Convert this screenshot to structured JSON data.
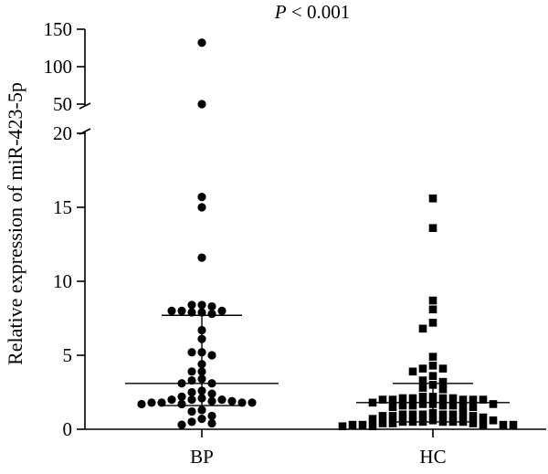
{
  "chart_data": {
    "type": "scatter",
    "title": "P < 0.001",
    "title_italic_prefix": "P",
    "title_rest": " < 0.001",
    "ylabel": "Relative expression of miR-423-5p",
    "xlabel": "",
    "categories": [
      "BP",
      "HC"
    ],
    "y_axis": {
      "segments": [
        {
          "range": [
            0,
            20
          ],
          "ticks": [
            0,
            5,
            10,
            15,
            20
          ]
        },
        {
          "range": [
            50,
            150
          ],
          "ticks": [
            50,
            100,
            150
          ]
        }
      ],
      "broken": true
    },
    "grid": false,
    "series": [
      {
        "group": "BP",
        "marker": "circle",
        "median": 3.1,
        "iqr": [
          1.6,
          7.7
        ],
        "points": [
          [
            0,
            132
          ],
          [
            0,
            50
          ],
          [
            0,
            15.7
          ],
          [
            0,
            15.0
          ],
          [
            0,
            11.6
          ],
          [
            0,
            8.4
          ],
          [
            0,
            8.3
          ],
          [
            0,
            8.0
          ],
          [
            0,
            8.0
          ],
          [
            0,
            8.0
          ],
          [
            0,
            7.9
          ],
          [
            0,
            7.8
          ],
          [
            0,
            8.4
          ],
          [
            0,
            7.9
          ],
          [
            0,
            6.7
          ],
          [
            0,
            6.1
          ],
          [
            0,
            5.2
          ],
          [
            0,
            5.0
          ],
          [
            0,
            5.2
          ],
          [
            0,
            4.4
          ],
          [
            0,
            3.9
          ],
          [
            0,
            3.9
          ],
          [
            0,
            3.4
          ],
          [
            0,
            3.3
          ],
          [
            0,
            3.1
          ],
          [
            0,
            3.1
          ],
          [
            0,
            2.6
          ],
          [
            0,
            2.4
          ],
          [
            0,
            2.5
          ],
          [
            0,
            2.2
          ],
          [
            0,
            2.1
          ],
          [
            0,
            2.0
          ],
          [
            0,
            2.0
          ],
          [
            0,
            1.9
          ],
          [
            0,
            1.9
          ],
          [
            0,
            1.8
          ],
          [
            0,
            1.8
          ],
          [
            0,
            1.7
          ],
          [
            0,
            1.7
          ],
          [
            0,
            1.8
          ],
          [
            0,
            1.8
          ],
          [
            0,
            2.0
          ],
          [
            0,
            1.3
          ],
          [
            0,
            1.2
          ],
          [
            0,
            0.9
          ],
          [
            0,
            0.7
          ],
          [
            0,
            0.5
          ],
          [
            0,
            0.4
          ],
          [
            0,
            0.3
          ]
        ]
      },
      {
        "group": "HC",
        "marker": "square",
        "median": 1.8,
        "iqr": [
          0.5,
          3.1
        ],
        "points": [
          [
            1,
            15.6
          ],
          [
            1,
            13.6
          ],
          [
            1,
            8.7
          ],
          [
            1,
            8.1
          ],
          [
            1,
            7.2
          ],
          [
            1,
            6.8
          ],
          [
            1,
            4.9
          ],
          [
            1,
            4.3
          ],
          [
            1,
            4.1
          ],
          [
            1,
            4.1
          ],
          [
            1,
            3.9
          ],
          [
            1,
            3.6
          ],
          [
            1,
            3.3
          ],
          [
            1,
            3.2
          ],
          [
            1,
            3.0
          ],
          [
            1,
            2.8
          ],
          [
            1,
            2.7
          ],
          [
            1,
            2.2
          ],
          [
            1,
            2.2
          ],
          [
            1,
            2.1
          ],
          [
            1,
            2.1
          ],
          [
            1,
            2.0
          ],
          [
            1,
            2.0
          ],
          [
            1,
            2.0
          ],
          [
            1,
            2.0
          ],
          [
            1,
            2.0
          ],
          [
            1,
            2.1
          ],
          [
            1,
            2.1
          ],
          [
            1,
            1.8
          ],
          [
            1,
            1.7
          ],
          [
            1,
            1.6
          ],
          [
            1,
            1.6
          ],
          [
            1,
            1.5
          ],
          [
            1,
            1.5
          ],
          [
            1,
            1.5
          ],
          [
            1,
            1.6
          ],
          [
            1,
            1.6
          ],
          [
            1,
            1.7
          ],
          [
            1,
            1.7
          ],
          [
            1,
            1.1
          ],
          [
            1,
            1.0
          ],
          [
            1,
            1.0
          ],
          [
            1,
            1.0
          ],
          [
            1,
            1.0
          ],
          [
            1,
            1.0
          ],
          [
            1,
            0.9
          ],
          [
            1,
            0.9
          ],
          [
            1,
            0.9
          ],
          [
            1,
            1.0
          ],
          [
            1,
            0.8
          ],
          [
            1,
            0.7
          ],
          [
            1,
            0.6
          ],
          [
            1,
            0.6
          ],
          [
            1,
            0.5
          ],
          [
            1,
            0.5
          ],
          [
            1,
            0.5
          ],
          [
            1,
            0.5
          ],
          [
            1,
            0.5
          ],
          [
            1,
            0.5
          ],
          [
            1,
            0.4
          ],
          [
            1,
            0.4
          ],
          [
            1,
            0.4
          ],
          [
            1,
            0.3
          ],
          [
            1,
            0.3
          ],
          [
            1,
            0.3
          ],
          [
            1,
            0.3
          ],
          [
            1,
            0.3
          ],
          [
            1,
            0.2
          ],
          [
            1,
            0.2
          ]
        ]
      }
    ]
  }
}
